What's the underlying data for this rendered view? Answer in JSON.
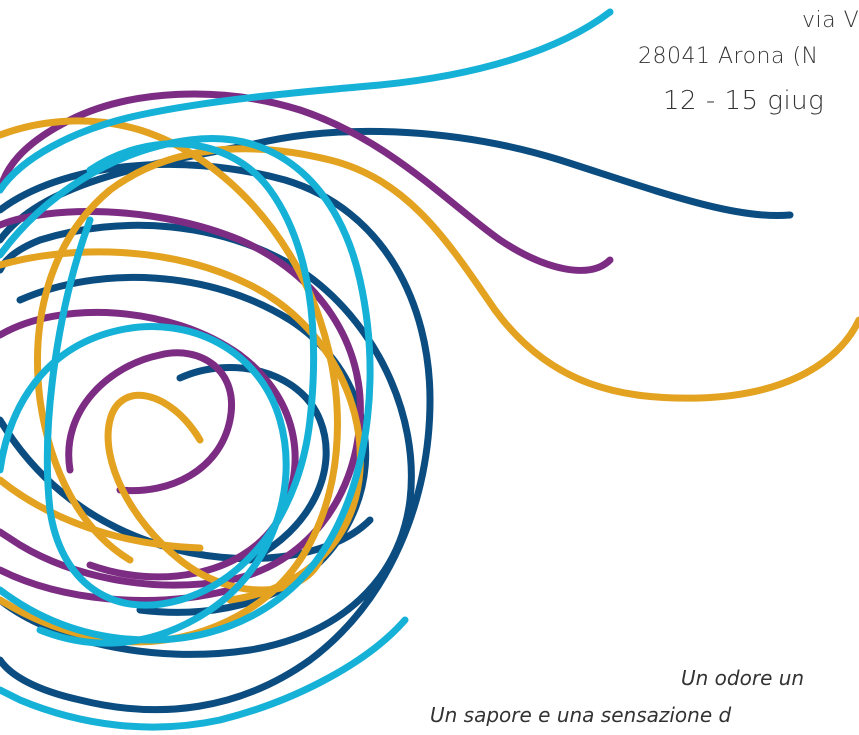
{
  "address": {
    "line1": "via V",
    "line2": "28041 Arona (N"
  },
  "event": {
    "dates": "12 - 15 giug"
  },
  "tagline": {
    "line1": "Un odore un",
    "line2": "Un sapore e una sensazione d"
  },
  "colors": {
    "cyan": "#15b1d7",
    "navy": "#0b4d80",
    "purple": "#7c2d83",
    "gold": "#e3a21f"
  },
  "decor_icon": "scribble-swirl-icon"
}
